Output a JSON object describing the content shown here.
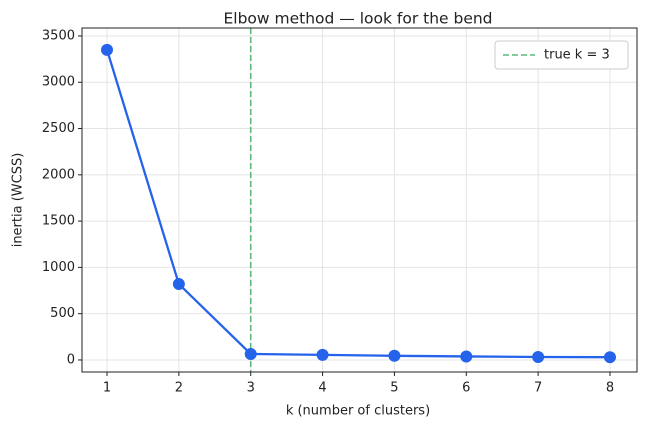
{
  "chart_data": {
    "type": "line",
    "title": "Elbow method — look for the bend",
    "xlabel": "k (number of clusters)",
    "ylabel": "inertia  (WCSS)",
    "x": [
      1,
      2,
      3,
      4,
      5,
      6,
      7,
      8
    ],
    "series": [
      {
        "name": "inertia",
        "color": "#2563eb",
        "values": [
          3350,
          820,
          65,
          55,
          45,
          38,
          32,
          30
        ]
      }
    ],
    "vline": {
      "x": 3,
      "label": "true k = 3",
      "color": "#5cb87a"
    },
    "xlim": [
      0.652,
      8.376
    ],
    "ylim": [
      -130,
      3586
    ],
    "xticks": [
      1,
      2,
      3,
      4,
      5,
      6,
      7,
      8
    ],
    "yticks": [
      0,
      500,
      1000,
      1500,
      2000,
      2500,
      3000,
      3500
    ],
    "grid": true,
    "legend": "upper right"
  }
}
